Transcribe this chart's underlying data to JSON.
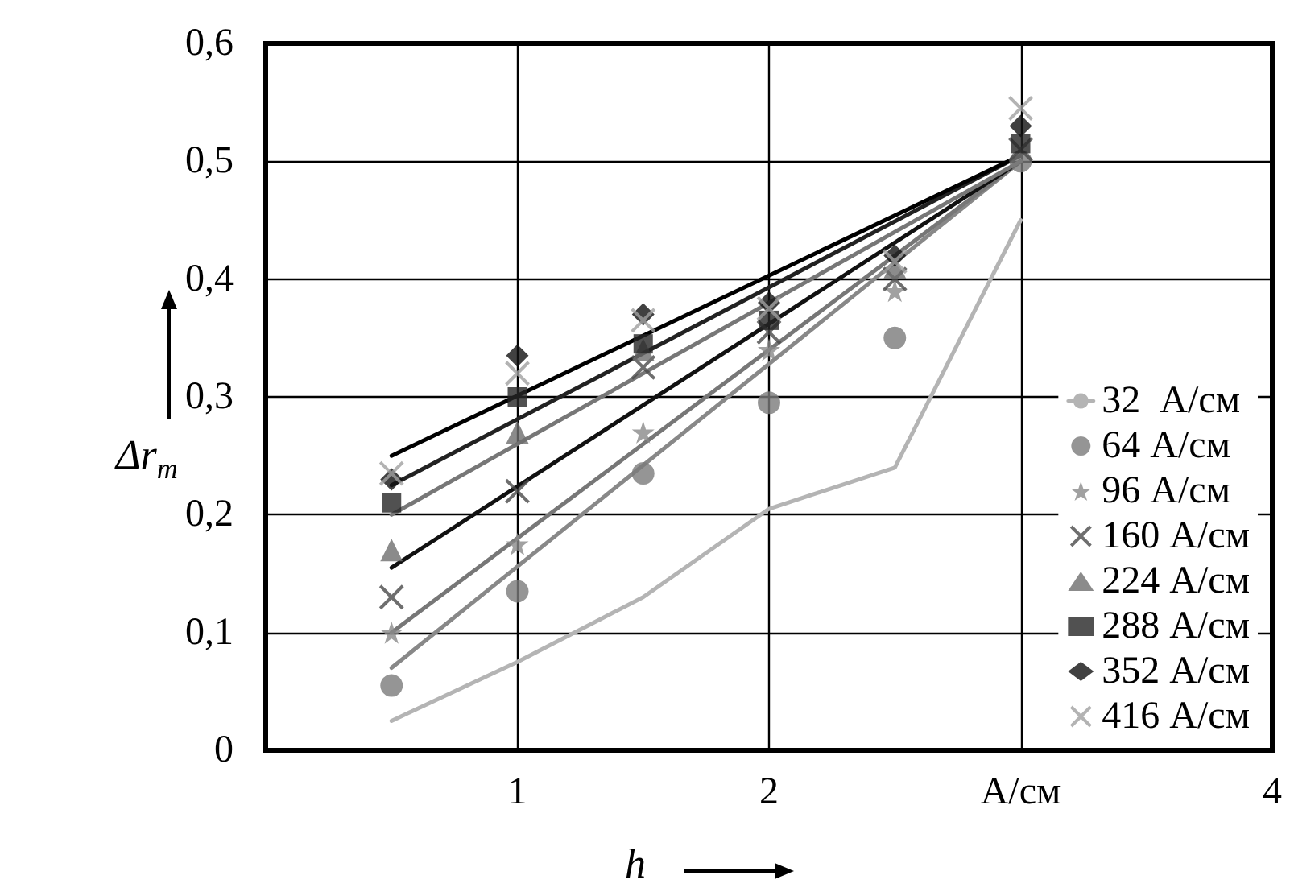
{
  "chart_data": {
    "type": "scatter",
    "xlabel": "h",
    "ylabel": "Δr$_{m}$",
    "xlim": [
      0,
      4
    ],
    "xticks": [
      1,
      2,
      {
        "value": 3,
        "label": "А/см"
      },
      4
    ],
    "ylim": [
      0,
      0.6
    ],
    "yticks": [
      0,
      {
        "value": 0.1,
        "label": "0,1"
      },
      {
        "value": 0.2,
        "label": "0,2"
      },
      {
        "value": 0.3,
        "label": "0,3"
      },
      {
        "value": 0.4,
        "label": "0,4"
      },
      {
        "value": 0.5,
        "label": "0,5"
      },
      {
        "value": 0.6,
        "label": "0,6"
      }
    ],
    "grid": true,
    "legend": "bottom right",
    "series": [
      {
        "name": "32  А/см",
        "type": "line",
        "marker": "none",
        "color": "#b4b4b4",
        "x": [
          0.5,
          1,
          1.5,
          2,
          2.5,
          3
        ],
        "values": [
          0.025,
          0.075,
          0.13,
          0.205,
          0.24,
          0.45
        ]
      },
      {
        "name": "64 А/см",
        "marker": "circle",
        "color": "#7a7a7a",
        "x": [
          0.5,
          1,
          1.5,
          2,
          2.5,
          3
        ],
        "values": [
          0.055,
          0.135,
          0.235,
          0.295,
          0.35,
          0.5
        ]
      },
      {
        "name": "96 А/см",
        "marker": "star",
        "color": "#8a8a8a",
        "x": [
          0.5,
          1,
          1.5,
          2,
          2.5
        ],
        "values": [
          0.1,
          0.175,
          0.27,
          0.34,
          0.39
        ]
      },
      {
        "name": "160 А/см",
        "marker": "cross",
        "color": "#4a4a4a",
        "x": [
          0.5,
          1,
          1.5,
          2,
          2.5,
          3
        ],
        "values": [
          0.13,
          0.22,
          0.325,
          0.355,
          0.4,
          0.51
        ]
      },
      {
        "name": "224 А/см",
        "marker": "triangle",
        "color": "#6e6e6e",
        "x": [
          0.5,
          1,
          1.5,
          2,
          2.5
        ],
        "values": [
          0.17,
          0.27,
          0.34,
          null,
          0.41
        ]
      },
      {
        "name": "288 А/см",
        "marker": "square",
        "color": "#262626",
        "x": [
          0.5,
          1,
          1.5,
          2,
          2.5,
          3
        ],
        "values": [
          0.21,
          0.3,
          0.345,
          0.365,
          null,
          0.515
        ]
      },
      {
        "name": "352 А/см",
        "marker": "diamond",
        "color": "#111111",
        "x": [
          0.5,
          1,
          1.5,
          2,
          2.5,
          3
        ],
        "values": [
          0.23,
          0.335,
          0.37,
          0.38,
          0.42,
          0.53
        ]
      },
      {
        "name": "416 А/см",
        "marker": "cross",
        "color": "#a0a0a0",
        "x": [
          0.5,
          1,
          1.5,
          2,
          2.5,
          3
        ],
        "values": [
          0.235,
          0.32,
          0.365,
          0.375,
          0.415,
          0.545
        ]
      },
      {
        "type": "line",
        "marker": "none",
        "color": "#888888",
        "x": [
          0.5,
          3
        ],
        "values": [
          0.07,
          0.5
        ]
      },
      {
        "type": "line",
        "marker": "none",
        "color": "#777777",
        "x": [
          0.5,
          3
        ],
        "values": [
          0.1,
          0.5
        ]
      },
      {
        "type": "line",
        "marker": "none",
        "color": "#111111",
        "x": [
          0.5,
          3
        ],
        "values": [
          0.155,
          0.5
        ]
      },
      {
        "type": "line",
        "marker": "none",
        "color": "#777777",
        "x": [
          0.5,
          3
        ],
        "values": [
          0.2,
          0.5
        ]
      },
      {
        "type": "line",
        "marker": "none",
        "color": "#222222",
        "x": [
          0.5,
          3
        ],
        "values": [
          0.225,
          0.505
        ]
      },
      {
        "type": "line",
        "marker": "none",
        "color": "#000000",
        "x": [
          0.5,
          3
        ],
        "values": [
          0.25,
          0.505
        ]
      }
    ]
  }
}
